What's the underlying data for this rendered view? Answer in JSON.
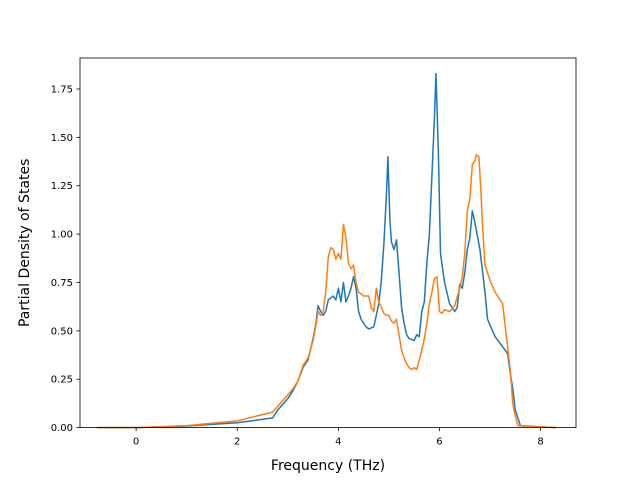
{
  "chart_data": {
    "type": "line",
    "title": "",
    "xlabel": "Frequency (THz)",
    "ylabel": "Partial Density of States",
    "xlim": [
      -1.11,
      8.7
    ],
    "ylim": [
      0.0,
      1.91
    ],
    "xticks": [
      0,
      2,
      4,
      6,
      8
    ],
    "xtick_labels": [
      "0",
      "2",
      "4",
      "6",
      "8"
    ],
    "yticks": [
      0.0,
      0.25,
      0.5,
      0.75,
      1.0,
      1.25,
      1.5,
      1.75
    ],
    "ytick_labels": [
      "0.00",
      "0.25",
      "0.50",
      "0.75",
      "1.00",
      "1.25",
      "1.50",
      "1.75"
    ],
    "grid": false,
    "legend": "none",
    "series": [
      {
        "color": "#1f77b4",
        "points": [
          [
            -0.78,
            0.0
          ],
          [
            0.0,
            0.0
          ],
          [
            1.0,
            0.008
          ],
          [
            2.0,
            0.025
          ],
          [
            2.7,
            0.05
          ],
          [
            2.8,
            0.09
          ],
          [
            3.0,
            0.15
          ],
          [
            3.1,
            0.19
          ],
          [
            3.2,
            0.24
          ],
          [
            3.3,
            0.31
          ],
          [
            3.4,
            0.35
          ],
          [
            3.5,
            0.46
          ],
          [
            3.55,
            0.53
          ],
          [
            3.6,
            0.63
          ],
          [
            3.65,
            0.6
          ],
          [
            3.7,
            0.58
          ],
          [
            3.75,
            0.6
          ],
          [
            3.8,
            0.66
          ],
          [
            3.85,
            0.67
          ],
          [
            3.9,
            0.68
          ],
          [
            3.95,
            0.66
          ],
          [
            4.0,
            0.72
          ],
          [
            4.05,
            0.65
          ],
          [
            4.1,
            0.75
          ],
          [
            4.15,
            0.65
          ],
          [
            4.2,
            0.68
          ],
          [
            4.25,
            0.72
          ],
          [
            4.3,
            0.78
          ],
          [
            4.35,
            0.72
          ],
          [
            4.4,
            0.6
          ],
          [
            4.45,
            0.56
          ],
          [
            4.5,
            0.54
          ],
          [
            4.55,
            0.52
          ],
          [
            4.6,
            0.51
          ],
          [
            4.7,
            0.52
          ],
          [
            4.75,
            0.58
          ],
          [
            4.8,
            0.64
          ],
          [
            4.85,
            0.76
          ],
          [
            4.9,
            0.95
          ],
          [
            4.95,
            1.2
          ],
          [
            4.98,
            1.4
          ],
          [
            5.02,
            1.07
          ],
          [
            5.05,
            0.96
          ],
          [
            5.1,
            0.92
          ],
          [
            5.15,
            0.97
          ],
          [
            5.2,
            0.8
          ],
          [
            5.25,
            0.62
          ],
          [
            5.3,
            0.54
          ],
          [
            5.35,
            0.48
          ],
          [
            5.4,
            0.46
          ],
          [
            5.5,
            0.45
          ],
          [
            5.55,
            0.48
          ],
          [
            5.6,
            0.47
          ],
          [
            5.65,
            0.6
          ],
          [
            5.7,
            0.65
          ],
          [
            5.75,
            0.85
          ],
          [
            5.8,
            1.0
          ],
          [
            5.85,
            1.3
          ],
          [
            5.9,
            1.6
          ],
          [
            5.93,
            1.83
          ],
          [
            5.98,
            1.4
          ],
          [
            6.02,
            0.9
          ],
          [
            6.1,
            0.75
          ],
          [
            6.2,
            0.64
          ],
          [
            6.3,
            0.6
          ],
          [
            6.35,
            0.62
          ],
          [
            6.4,
            0.74
          ],
          [
            6.45,
            0.72
          ],
          [
            6.5,
            0.8
          ],
          [
            6.55,
            0.92
          ],
          [
            6.6,
            0.98
          ],
          [
            6.65,
            1.12
          ],
          [
            6.7,
            1.06
          ],
          [
            6.8,
            0.92
          ],
          [
            6.9,
            0.7
          ],
          [
            6.95,
            0.56
          ],
          [
            7.1,
            0.47
          ],
          [
            7.3,
            0.4
          ],
          [
            7.35,
            0.38
          ],
          [
            7.4,
            0.28
          ],
          [
            7.45,
            0.2
          ],
          [
            7.5,
            0.09
          ],
          [
            7.6,
            0.01
          ],
          [
            8.3,
            0.0
          ]
        ]
      },
      {
        "color": "#ff7f0e",
        "points": [
          [
            -0.78,
            0.0
          ],
          [
            0.0,
            0.0
          ],
          [
            1.0,
            0.01
          ],
          [
            2.0,
            0.035
          ],
          [
            2.7,
            0.08
          ],
          [
            3.0,
            0.17
          ],
          [
            3.1,
            0.2
          ],
          [
            3.2,
            0.24
          ],
          [
            3.3,
            0.32
          ],
          [
            3.4,
            0.36
          ],
          [
            3.5,
            0.45
          ],
          [
            3.55,
            0.52
          ],
          [
            3.6,
            0.6
          ],
          [
            3.65,
            0.58
          ],
          [
            3.7,
            0.6
          ],
          [
            3.75,
            0.7
          ],
          [
            3.8,
            0.88
          ],
          [
            3.85,
            0.93
          ],
          [
            3.9,
            0.92
          ],
          [
            3.95,
            0.87
          ],
          [
            4.0,
            0.9
          ],
          [
            4.05,
            0.87
          ],
          [
            4.1,
            1.05
          ],
          [
            4.15,
            0.98
          ],
          [
            4.2,
            0.85
          ],
          [
            4.25,
            0.82
          ],
          [
            4.3,
            0.84
          ],
          [
            4.35,
            0.75
          ],
          [
            4.4,
            0.7
          ],
          [
            4.5,
            0.68
          ],
          [
            4.55,
            0.68
          ],
          [
            4.6,
            0.68
          ],
          [
            4.65,
            0.62
          ],
          [
            4.7,
            0.6
          ],
          [
            4.75,
            0.72
          ],
          [
            4.8,
            0.65
          ],
          [
            4.85,
            0.62
          ],
          [
            4.9,
            0.59
          ],
          [
            4.95,
            0.58
          ],
          [
            5.0,
            0.58
          ],
          [
            5.05,
            0.55
          ],
          [
            5.1,
            0.54
          ],
          [
            5.15,
            0.56
          ],
          [
            5.2,
            0.48
          ],
          [
            5.25,
            0.4
          ],
          [
            5.3,
            0.36
          ],
          [
            5.35,
            0.33
          ],
          [
            5.4,
            0.31
          ],
          [
            5.45,
            0.3
          ],
          [
            5.5,
            0.31
          ],
          [
            5.55,
            0.3
          ],
          [
            5.6,
            0.35
          ],
          [
            5.65,
            0.4
          ],
          [
            5.7,
            0.46
          ],
          [
            5.75,
            0.54
          ],
          [
            5.8,
            0.64
          ],
          [
            5.85,
            0.7
          ],
          [
            5.9,
            0.77
          ],
          [
            5.95,
            0.78
          ],
          [
            6.0,
            0.6
          ],
          [
            6.05,
            0.59
          ],
          [
            6.1,
            0.61
          ],
          [
            6.2,
            0.6
          ],
          [
            6.3,
            0.63
          ],
          [
            6.4,
            0.72
          ],
          [
            6.45,
            0.78
          ],
          [
            6.5,
            0.9
          ],
          [
            6.55,
            1.12
          ],
          [
            6.6,
            1.18
          ],
          [
            6.65,
            1.36
          ],
          [
            6.7,
            1.38
          ],
          [
            6.73,
            1.41
          ],
          [
            6.78,
            1.4
          ],
          [
            6.82,
            1.22
          ],
          [
            6.85,
            1.05
          ],
          [
            6.9,
            0.84
          ],
          [
            7.0,
            0.76
          ],
          [
            7.1,
            0.7
          ],
          [
            7.2,
            0.66
          ],
          [
            7.25,
            0.64
          ],
          [
            7.3,
            0.52
          ],
          [
            7.4,
            0.3
          ],
          [
            7.45,
            0.12
          ],
          [
            7.5,
            0.06
          ],
          [
            7.55,
            0.01
          ],
          [
            8.3,
            0.0
          ]
        ]
      }
    ]
  }
}
